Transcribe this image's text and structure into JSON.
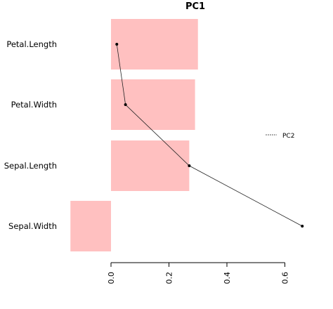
{
  "chart_data": {
    "type": "bar",
    "orientation": "horizontal",
    "title": "PC1",
    "categories": [
      "Petal.Length",
      "Petal.Width",
      "Sepal.Length",
      "Sepal.Width"
    ],
    "values": [
      0.3,
      0.29,
      0.27,
      -0.14
    ],
    "bar_color": "#ffc0c0",
    "xlim": [
      -0.15,
      0.67
    ],
    "xticks": [
      0.0,
      0.2,
      0.4,
      0.6
    ],
    "xtick_labels": [
      "0.0",
      "0.2",
      "0.4",
      "0.6"
    ],
    "grid": false,
    "series": [
      {
        "name": "PC2",
        "type": "line",
        "values": [
          0.02,
          0.05,
          0.27,
          0.66
        ]
      }
    ],
    "legend": {
      "placement": "right",
      "entries": [
        "PC2"
      ]
    }
  }
}
